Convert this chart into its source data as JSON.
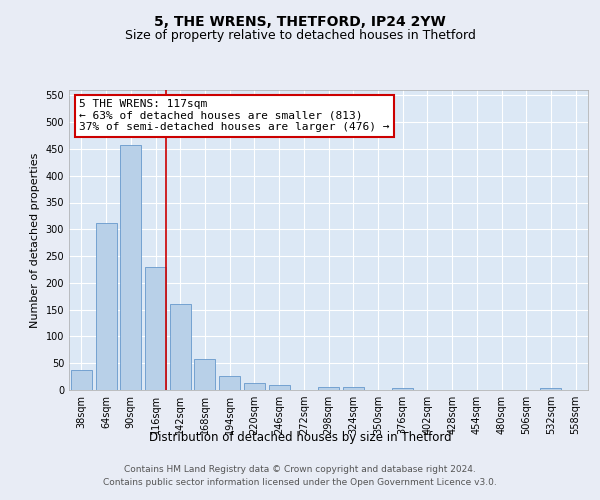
{
  "title1": "5, THE WRENS, THETFORD, IP24 2YW",
  "title2": "Size of property relative to detached houses in Thetford",
  "xlabel": "Distribution of detached houses by size in Thetford",
  "ylabel": "Number of detached properties",
  "categories": [
    "38sqm",
    "64sqm",
    "90sqm",
    "116sqm",
    "142sqm",
    "168sqm",
    "194sqm",
    "220sqm",
    "246sqm",
    "272sqm",
    "298sqm",
    "324sqm",
    "350sqm",
    "376sqm",
    "402sqm",
    "428sqm",
    "454sqm",
    "480sqm",
    "506sqm",
    "532sqm",
    "558sqm"
  ],
  "values": [
    38,
    311,
    457,
    230,
    160,
    58,
    27,
    13,
    9,
    0,
    5,
    5,
    0,
    4,
    0,
    0,
    0,
    0,
    0,
    4,
    0
  ],
  "bar_color": "#b8d0e8",
  "bar_edge_color": "#6699cc",
  "marker_index": 3,
  "marker_color": "#cc0000",
  "annotation_text": "5 THE WRENS: 117sqm\n← 63% of detached houses are smaller (813)\n37% of semi-detached houses are larger (476) →",
  "annotation_box_color": "#ffffff",
  "annotation_box_edge_color": "#cc0000",
  "ylim": [
    0,
    560
  ],
  "yticks": [
    0,
    50,
    100,
    150,
    200,
    250,
    300,
    350,
    400,
    450,
    500,
    550
  ],
  "bg_color": "#e8ecf5",
  "plot_bg_color": "#dce8f5",
  "grid_color": "#ffffff",
  "footer_text": "Contains HM Land Registry data © Crown copyright and database right 2024.\nContains public sector information licensed under the Open Government Licence v3.0.",
  "title1_fontsize": 10,
  "title2_fontsize": 9,
  "xlabel_fontsize": 8.5,
  "ylabel_fontsize": 8,
  "tick_fontsize": 7,
  "annotation_fontsize": 8,
  "footer_fontsize": 6.5
}
